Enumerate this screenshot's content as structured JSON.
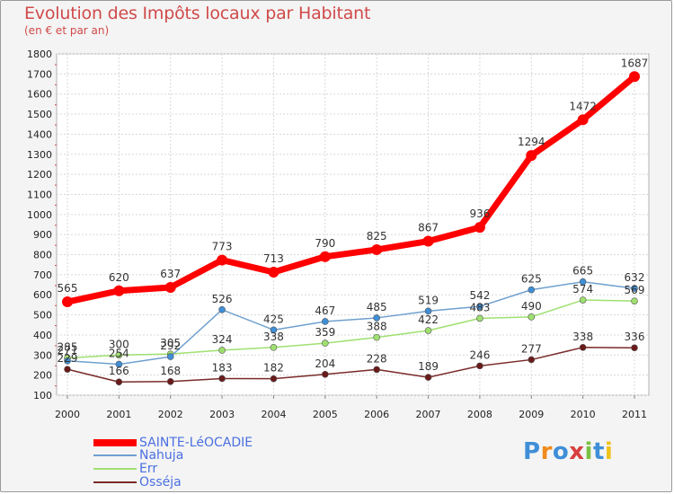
{
  "title": "Evolution des Impôts locaux par Habitant",
  "subtitle": "(en € et par an)",
  "logo": {
    "text": "Proxiti",
    "letters": [
      "P",
      "r",
      "o",
      "x",
      "i",
      "t",
      "i"
    ],
    "colors": [
      "#3f8fd8",
      "#f08a1c",
      "#3f8fd8",
      "#d83f3f",
      "#7ac043",
      "#3f8fd8",
      "#f0c21c"
    ]
  },
  "chart_data": {
    "type": "line",
    "title": "Evolution des Impôts locaux par Habitant",
    "subtitle": "(en € et par an)",
    "xlabel": "",
    "ylabel": "",
    "x": [
      "2000",
      "2001",
      "2002",
      "2003",
      "2004",
      "2005",
      "2006",
      "2007",
      "2008",
      "2009",
      "2010",
      "2011"
    ],
    "ylim": [
      100,
      1800
    ],
    "yticks": [
      "100",
      "200",
      "300",
      "400",
      "500",
      "600",
      "700",
      "800",
      "900",
      "1000",
      "1100",
      "1200",
      "1300",
      "1400",
      "1500",
      "1600",
      "1700",
      "1800"
    ],
    "grid": true,
    "series": [
      {
        "name": "SAINTE-LéOCADIE",
        "color": "#ff0000",
        "values": [
          565,
          620,
          637,
          773,
          713,
          790,
          825,
          867,
          936,
          1294,
          1472,
          1687
        ],
        "labels": [
          "565",
          "620",
          "637",
          "773",
          "713",
          "790",
          "825",
          "867",
          "936",
          "1294",
          "1472",
          "1687"
        ]
      },
      {
        "name": "Nahuja",
        "color": "#6fa0cf",
        "values": [
          271,
          254,
          292,
          526,
          425,
          467,
          485,
          519,
          542,
          625,
          665,
          632
        ],
        "labels": [
          "271",
          "254",
          "292",
          "526",
          "425",
          "467",
          "485",
          "519",
          "542",
          "625",
          "665",
          "632"
        ]
      },
      {
        "name": "Err",
        "color": "#9fe070",
        "values": [
          285,
          300,
          305,
          324,
          338,
          359,
          388,
          422,
          483,
          490,
          574,
          569
        ],
        "labels": [
          "285",
          "300",
          "305",
          "324",
          "338",
          "359",
          "388",
          "422",
          "483",
          "490",
          "574",
          "569"
        ]
      },
      {
        "name": "Osséja",
        "color": "#7a2a2a",
        "values": [
          229,
          166,
          168,
          183,
          182,
          204,
          228,
          189,
          246,
          277,
          338,
          336
        ],
        "labels": [
          "229",
          "166",
          "168",
          "183",
          "182",
          "204",
          "228",
          "189",
          "246",
          "277",
          "338",
          "336"
        ]
      }
    ]
  }
}
